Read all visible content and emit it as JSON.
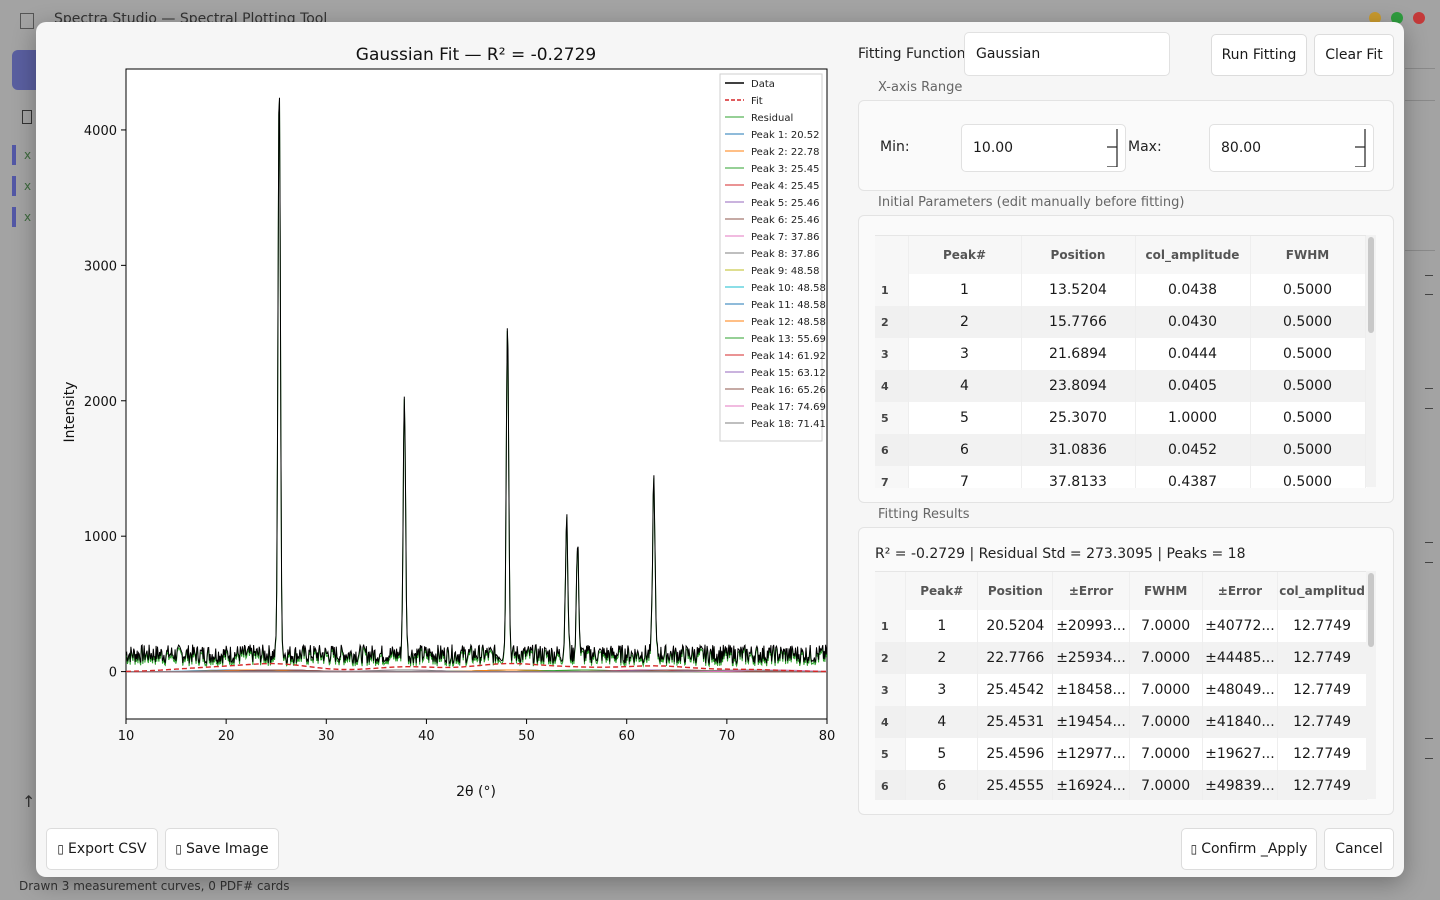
{
  "app": {
    "title": "Spectra Studio — Spectral Plotting Tool",
    "layer_labels": [
      "x",
      "x",
      "x"
    ],
    "status": "Drawn 3 measurement curves, 0 PDF# cards"
  },
  "dialog": {
    "fitting_function_label": "Fitting Function:",
    "fitting_function_value": "Gaussian",
    "run_fitting": "Run Fitting",
    "clear_fit": "Clear Fit",
    "xrange_title": "X-axis Range",
    "min_label": "Min:",
    "min_value": "10.00",
    "max_label": "Max:",
    "max_value": "80.00",
    "params_title": "Initial Parameters (edit manually before fitting)",
    "params_headers": [
      "Peak#",
      "Position",
      "col_amplitude",
      "FWHM"
    ],
    "params_rows": [
      [
        "1",
        "1",
        "13.5204",
        "0.0438",
        "0.5000"
      ],
      [
        "2",
        "2",
        "15.7766",
        "0.0430",
        "0.5000"
      ],
      [
        "3",
        "3",
        "21.6894",
        "0.0444",
        "0.5000"
      ],
      [
        "4",
        "4",
        "23.8094",
        "0.0405",
        "0.5000"
      ],
      [
        "5",
        "5",
        "25.3070",
        "1.0000",
        "0.5000"
      ],
      [
        "6",
        "6",
        "31.0836",
        "0.0452",
        "0.5000"
      ],
      [
        "7",
        "7",
        "37.8133",
        "0.4387",
        "0.5000"
      ]
    ],
    "results_title": "Fitting Results",
    "results_summary": "R² = -0.2729  |  Residual Std = 273.3095  |  Peaks = 18",
    "results_headers": [
      "Peak#",
      "Position",
      "±Error",
      "FWHM",
      "±Error",
      "col_amplitud"
    ],
    "results_rows": [
      [
        "1",
        "1",
        "20.5204",
        "±20993...",
        "7.0000",
        "±40772...",
        "12.7749"
      ],
      [
        "2",
        "2",
        "22.7766",
        "±25934...",
        "7.0000",
        "±44485...",
        "12.7749"
      ],
      [
        "3",
        "3",
        "25.4542",
        "±18458...",
        "7.0000",
        "±48049...",
        "12.7749"
      ],
      [
        "4",
        "4",
        "25.4531",
        "±19454...",
        "7.0000",
        "±41840...",
        "12.7749"
      ],
      [
        "5",
        "5",
        "25.4596",
        "±12977...",
        "7.0000",
        "±19627...",
        "12.7749"
      ],
      [
        "6",
        "6",
        "25.4555",
        "±16924...",
        "7.0000",
        "±49839...",
        "12.7749"
      ]
    ],
    "export_csv": "Export CSV",
    "save_image": "Save Image",
    "confirm_apply": "Confirm _Apply",
    "cancel": "Cancel"
  },
  "chart_data": {
    "type": "line",
    "title": "Gaussian Fit — R² = -0.2729",
    "xlabel": "2θ (°)",
    "ylabel": "Intensity",
    "xlim": [
      10,
      80
    ],
    "ylim": [
      -350,
      4450
    ],
    "xticks": [
      10,
      20,
      30,
      40,
      50,
      60,
      70,
      80
    ],
    "yticks": [
      0,
      1000,
      2000,
      3000,
      4000
    ],
    "baseline": 130,
    "noise_amplitude": 70,
    "peaks": [
      {
        "x": 25.3,
        "y": 4250
      },
      {
        "x": 37.8,
        "y": 1880
      },
      {
        "x": 48.1,
        "y": 2500
      },
      {
        "x": 54.0,
        "y": 1000
      },
      {
        "x": 55.1,
        "y": 800
      },
      {
        "x": 62.7,
        "y": 1300
      }
    ],
    "legend_position": "top-right",
    "series": [
      {
        "name": "Data",
        "color": "#000000",
        "style": "solid"
      },
      {
        "name": "Fit",
        "color": "#d62728",
        "style": "dashed"
      },
      {
        "name": "Residual",
        "color": "#2ca02c",
        "style": "solid"
      },
      {
        "name": "Peak 1: 20.52",
        "color": "#1f77b4"
      },
      {
        "name": "Peak 2: 22.78",
        "color": "#ff7f0e"
      },
      {
        "name": "Peak 3: 25.45",
        "color": "#2ca02c"
      },
      {
        "name": "Peak 4: 25.45",
        "color": "#d62728"
      },
      {
        "name": "Peak 5: 25.46",
        "color": "#9467bd"
      },
      {
        "name": "Peak 6: 25.46",
        "color": "#8c564b"
      },
      {
        "name": "Peak 7: 37.86",
        "color": "#e377c2"
      },
      {
        "name": "Peak 8: 37.86",
        "color": "#7f7f7f"
      },
      {
        "name": "Peak 9: 48.58",
        "color": "#bcbd22"
      },
      {
        "name": "Peak 10: 48.58",
        "color": "#17becf"
      },
      {
        "name": "Peak 11: 48.58",
        "color": "#1f77b4"
      },
      {
        "name": "Peak 12: 48.58",
        "color": "#ff7f0e"
      },
      {
        "name": "Peak 13: 55.69",
        "color": "#2ca02c"
      },
      {
        "name": "Peak 14: 61.92",
        "color": "#d62728"
      },
      {
        "name": "Peak 15: 63.12",
        "color": "#9467bd"
      },
      {
        "name": "Peak 16: 65.26",
        "color": "#8c564b"
      },
      {
        "name": "Peak 17: 74.69",
        "color": "#e377c2"
      },
      {
        "name": "Peak 18: 71.41",
        "color": "#7f7f7f"
      }
    ],
    "fit_bumps": [
      {
        "x": 18,
        "y": 25
      },
      {
        "x": 25,
        "y": 55
      },
      {
        "x": 38,
        "y": 35
      },
      {
        "x": 48,
        "y": 55
      },
      {
        "x": 55,
        "y": 25
      },
      {
        "x": 63,
        "y": 40
      },
      {
        "x": 72,
        "y": 15
      }
    ]
  }
}
